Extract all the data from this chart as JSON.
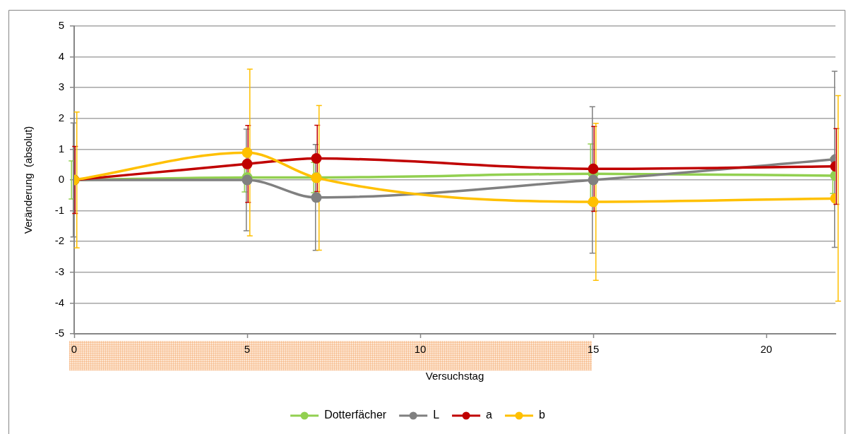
{
  "chart_data": {
    "type": "line",
    "xlabel": "Versuchstag",
    "ylabel": "Veränderung  (absolut)",
    "x": [
      0,
      5,
      7,
      15,
      22
    ],
    "xlim": [
      0,
      22
    ],
    "xticks": [
      0,
      5,
      10,
      15,
      20
    ],
    "ylim": [
      -5,
      5
    ],
    "yticks": [
      -5,
      -4,
      -3,
      -2,
      -1,
      0,
      1,
      2,
      3,
      4,
      5
    ],
    "grid": "y",
    "legend": "bottom",
    "marker": "circle",
    "series": [
      {
        "name": "Dotterfächer",
        "color": "#92d050",
        "values": [
          0,
          0.08,
          0.08,
          0.2,
          0.14
        ],
        "errors": [
          0.62,
          0.47,
          0.49,
          0.97,
          0.58
        ]
      },
      {
        "name": "L",
        "color": "#808080",
        "values": [
          0,
          0,
          -0.57,
          0,
          0.67
        ],
        "errors": [
          1.85,
          1.65,
          1.72,
          2.38,
          2.86
        ]
      },
      {
        "name": "a",
        "color": "#c00000",
        "values": [
          0,
          0.52,
          0.7,
          0.36,
          0.44
        ],
        "errors": [
          1.09,
          1.25,
          1.08,
          1.38,
          1.23
        ]
      },
      {
        "name": "b",
        "color": "#ffc000",
        "values": [
          0,
          0.89,
          0.07,
          -0.71,
          -0.6
        ],
        "errors": [
          2.21,
          2.71,
          2.35,
          2.55,
          3.34
        ]
      }
    ]
  }
}
